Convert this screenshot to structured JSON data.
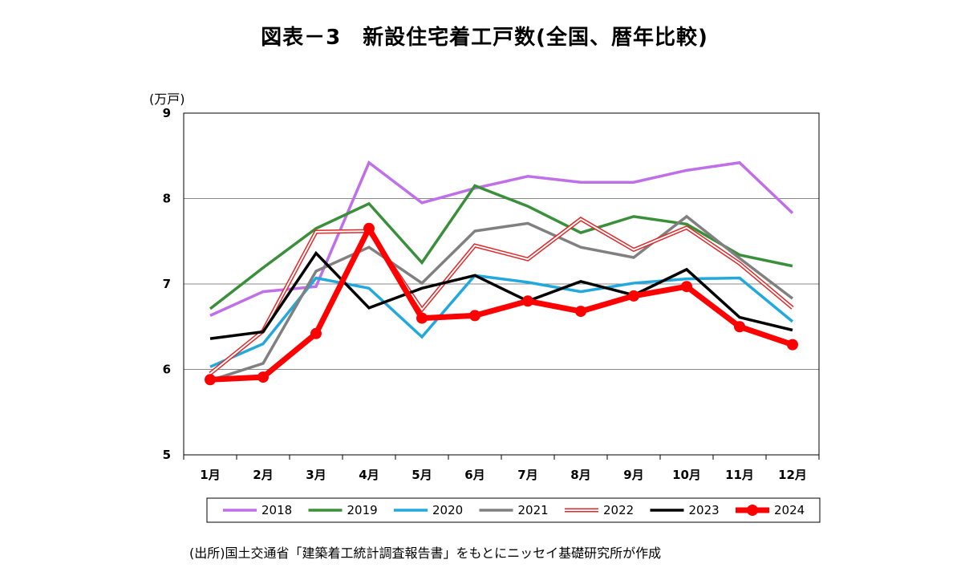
{
  "title": "図表－3　新設住宅着工戸数(全国、暦年比較)",
  "source_note": "(出所)国土交通省「建築着工統計調査報告書」をもとにニッセイ基礎研究所が作成",
  "chart_data": {
    "type": "line",
    "title": "図表－3　新設住宅着工戸数(全国、暦年比較)",
    "ylabel": "(万戸)",
    "xlabel": "",
    "ylim": [
      5,
      9
    ],
    "yticks": [
      5,
      6,
      7,
      8,
      9
    ],
    "grid": true,
    "legend_position": "bottom",
    "categories": [
      "1月",
      "2月",
      "3月",
      "4月",
      "5月",
      "6月",
      "7月",
      "8月",
      "9月",
      "10月",
      "11月",
      "12月"
    ],
    "series": [
      {
        "name": "2018",
        "color": "#bf6fe8",
        "style": "solid",
        "values": [
          6.63,
          6.91,
          6.97,
          8.42,
          7.95,
          8.12,
          8.26,
          8.19,
          8.19,
          8.33,
          8.42,
          7.83
        ]
      },
      {
        "name": "2019",
        "color": "#3a8f3a",
        "style": "solid",
        "values": [
          6.71,
          7.19,
          7.65,
          7.94,
          7.25,
          8.15,
          7.91,
          7.6,
          7.79,
          7.7,
          7.34,
          7.21
        ]
      },
      {
        "name": "2020",
        "color": "#21a9dd",
        "style": "solid",
        "values": [
          6.03,
          6.3,
          7.07,
          6.95,
          6.38,
          7.1,
          7.02,
          6.91,
          7.01,
          7.06,
          7.07,
          6.56
        ]
      },
      {
        "name": "2021",
        "color": "#808080",
        "style": "solid",
        "values": [
          5.87,
          6.07,
          7.15,
          7.43,
          7.01,
          7.62,
          7.71,
          7.43,
          7.31,
          7.79,
          7.3,
          6.83
        ]
      },
      {
        "name": "2022",
        "color": "#e02828",
        "style": "double",
        "values": [
          5.95,
          6.45,
          7.61,
          7.62,
          6.7,
          7.45,
          7.29,
          7.76,
          7.4,
          7.66,
          7.24,
          6.72
        ]
      },
      {
        "name": "2023",
        "color": "#000000",
        "style": "solid",
        "values": [
          6.36,
          6.44,
          7.36,
          6.72,
          6.95,
          7.1,
          6.8,
          7.03,
          6.87,
          7.17,
          6.61,
          6.46
        ]
      },
      {
        "name": "2024",
        "color": "#ff0000",
        "style": "bold-marker",
        "values": [
          5.88,
          5.91,
          6.42,
          7.65,
          6.6,
          6.63,
          6.8,
          6.68,
          6.86,
          6.97,
          6.5,
          6.29
        ]
      }
    ]
  }
}
